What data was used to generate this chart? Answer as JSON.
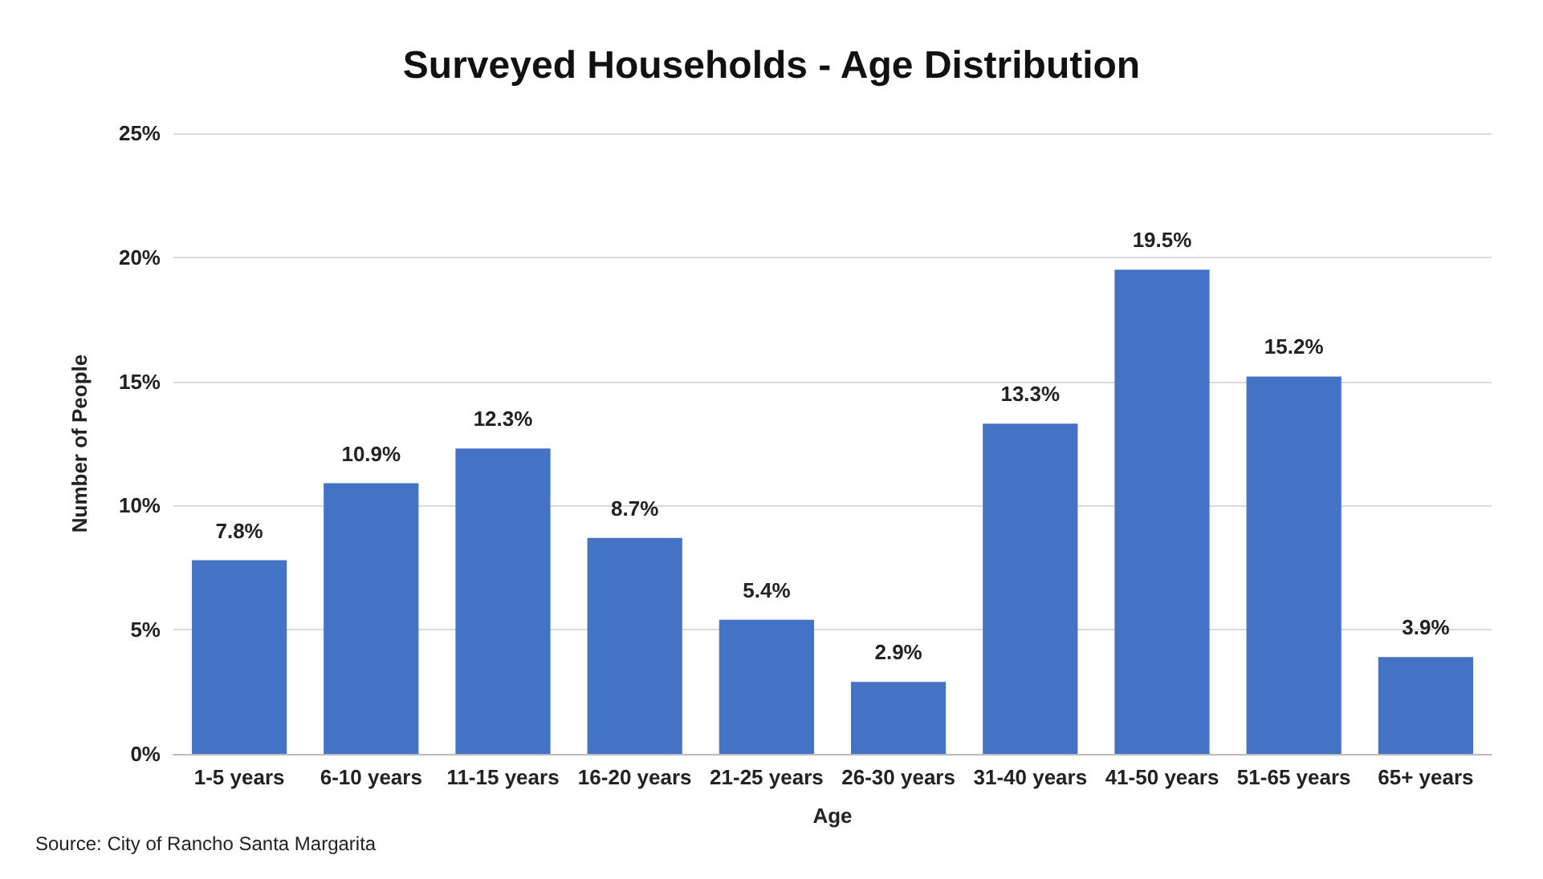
{
  "chart_data": {
    "type": "bar",
    "title": "Surveyed Households - Age Distribution",
    "xlabel": "Age",
    "ylabel": "Number of People",
    "categories": [
      "1-5 years",
      "6-10 years",
      "11-15 years",
      "16-20 years",
      "21-25 years",
      "26-30 years",
      "31-40 years",
      "41-50 years",
      "51-65 years",
      "65+ years"
    ],
    "values": [
      7.8,
      10.9,
      12.3,
      8.7,
      5.4,
      2.9,
      13.3,
      19.5,
      15.2,
      3.9
    ],
    "value_labels": [
      "7.8%",
      "10.9%",
      "12.3%",
      "8.7%",
      "5.4%",
      "2.9%",
      "13.3%",
      "19.5%",
      "15.2%",
      "3.9%"
    ],
    "color": "#4472c4",
    "ylim": [
      0,
      25
    ],
    "yticks": [
      {
        "value": 0,
        "label": "0%"
      },
      {
        "value": 5,
        "label": "5%"
      },
      {
        "value": 10,
        "label": "10%"
      },
      {
        "value": 15,
        "label": "15%"
      },
      {
        "value": 20,
        "label": "20%"
      },
      {
        "value": 25,
        "label": "25%"
      }
    ],
    "grid": "y",
    "annotations": [
      "Source: City of Rancho Santa Margarita"
    ]
  }
}
